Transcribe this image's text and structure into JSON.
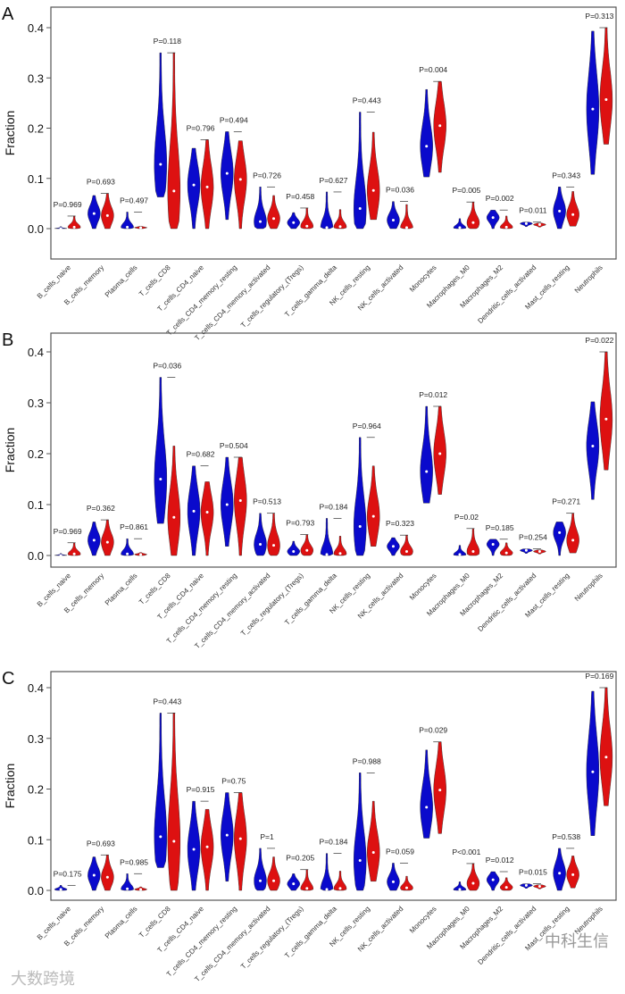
{
  "chart_data": [
    {
      "type": "violin",
      "panel_label": "A",
      "ylabel": "Fraction",
      "ylim": [
        0,
        0.4
      ],
      "yticks": [
        "0.0",
        "0.1",
        "0.2",
        "0.3",
        "0.4"
      ],
      "series_colors": {
        "group1": "#0a0acc",
        "group2": "#dd1111"
      },
      "categories": [
        "B_cells_naive",
        "B_cells_memory",
        "Plasma_cells",
        "T_cells_CD8",
        "T_cells_CD4_naive",
        "T_cells_CD4_memory_resting",
        "T_cells_CD4_memory_activated",
        "T_cells_regulatory_(Tregs)",
        "T_cells_gamma_delta",
        "NK_cells_resting",
        "NK_cells_activated",
        "Monocytes",
        "Macrophages_M0",
        "Macrophages_M2",
        "Dendritic_cells_activated",
        "Mast_cells_resting",
        "Neutrophils"
      ],
      "pvalues": [
        "P=0.969",
        "P=0.693",
        "P=0.497",
        "P=0.118",
        "P=0.796",
        "P=0.494",
        "P=0.726",
        "P=0.458",
        "P=0.627",
        "P=0.443",
        "P=0.036",
        "P=0.004",
        "P=0.005",
        "P=0.002",
        "P=0.011",
        "P=0.343",
        "P=0.313"
      ],
      "group1_min_max_median": [
        [
          0,
          0.004,
          0
        ],
        [
          0,
          0.066,
          0.03
        ],
        [
          0,
          0.033,
          0.003
        ],
        [
          0.063,
          0.35,
          0.128
        ],
        [
          0,
          0.16,
          0.087
        ],
        [
          0.018,
          0.193,
          0.11
        ],
        [
          0,
          0.083,
          0.014
        ],
        [
          0,
          0.032,
          0.012
        ],
        [
          0,
          0.073,
          0.002
        ],
        [
          0,
          0.232,
          0.04
        ],
        [
          0,
          0.054,
          0.017
        ],
        [
          0.103,
          0.277,
          0.164
        ],
        [
          0,
          0.02,
          0.002
        ],
        [
          0,
          0.037,
          0.022
        ],
        [
          0.004,
          0.013,
          0.01
        ],
        [
          0,
          0.083,
          0.035
        ],
        [
          0.108,
          0.393,
          0.238
        ]
      ],
      "group2_min_max_median": [
        [
          0,
          0.025,
          0.003
        ],
        [
          0,
          0.07,
          0.026
        ],
        [
          0,
          0.005,
          0.002
        ],
        [
          0,
          0.35,
          0.075
        ],
        [
          0,
          0.177,
          0.083
        ],
        [
          0,
          0.175,
          0.098
        ],
        [
          0,
          0.066,
          0.02
        ],
        [
          0,
          0.041,
          0.005
        ],
        [
          0,
          0.038,
          0.004
        ],
        [
          0.018,
          0.192,
          0.076
        ],
        [
          0,
          0.048,
          0.002
        ],
        [
          0.112,
          0.293,
          0.205
        ],
        [
          0,
          0.053,
          0.012
        ],
        [
          0,
          0.025,
          0.003
        ],
        [
          0.003,
          0.011,
          0.008
        ],
        [
          0.005,
          0.074,
          0.028
        ],
        [
          0.168,
          0.4,
          0.257
        ]
      ]
    },
    {
      "type": "violin",
      "panel_label": "B",
      "ylabel": "Fraction",
      "ylim": [
        0,
        0.4
      ],
      "yticks": [
        "0.0",
        "0.1",
        "0.2",
        "0.3",
        "0.4"
      ],
      "series_colors": {
        "group1": "#0a0acc",
        "group2": "#dd1111"
      },
      "categories": [
        "B_cells_naive",
        "B_cells_memory",
        "Plasma_cells",
        "T_cells_CD8",
        "T_cells_CD4_naive",
        "T_cells_CD4_memory_resting",
        "T_cells_CD4_memory_activated",
        "T_cells_regulatory_(Tregs)",
        "T_cells_gamma_delta",
        "NK_cells_resting",
        "NK_cells_activated",
        "Monocytes",
        "Macrophages_M0",
        "Macrophages_M2",
        "Dendritic_cells_activated",
        "Mast_cells_resting",
        "Neutrophils"
      ],
      "pvalues": [
        "P=0.969",
        "P=0.362",
        "P=0.861",
        "P=0.036",
        "P=0.682",
        "P=0.504",
        "P=0.513",
        "P=0.793",
        "P=0.184",
        "P=0.964",
        "P=0.323",
        "P=0.012",
        "P=0.02",
        "P=0.185",
        "P=0.254",
        "P=0.271",
        "P=0.022"
      ],
      "group1_min_max_median": [
        [
          0,
          0.004,
          0
        ],
        [
          0,
          0.066,
          0.03
        ],
        [
          0,
          0.033,
          0.003
        ],
        [
          0.063,
          0.35,
          0.15
        ],
        [
          0,
          0.176,
          0.087
        ],
        [
          0.018,
          0.193,
          0.1
        ],
        [
          0,
          0.083,
          0.022
        ],
        [
          0,
          0.028,
          0.008
        ],
        [
          0,
          0.073,
          0.002
        ],
        [
          0,
          0.232,
          0.057
        ],
        [
          0,
          0.035,
          0.018
        ],
        [
          0.103,
          0.293,
          0.165
        ],
        [
          0,
          0.02,
          0.002
        ],
        [
          0,
          0.032,
          0.022
        ],
        [
          0.004,
          0.013,
          0.01
        ],
        [
          0,
          0.066,
          0.045
        ],
        [
          0.11,
          0.302,
          0.215
        ]
      ],
      "group2_min_max_median": [
        [
          0,
          0.025,
          0.003
        ],
        [
          0,
          0.07,
          0.026
        ],
        [
          0,
          0.006,
          0.002
        ],
        [
          0,
          0.215,
          0.075
        ],
        [
          0,
          0.145,
          0.085
        ],
        [
          0,
          0.193,
          0.108
        ],
        [
          0,
          0.083,
          0.02
        ],
        [
          0,
          0.041,
          0.01
        ],
        [
          0,
          0.038,
          0.004
        ],
        [
          0.018,
          0.176,
          0.077
        ],
        [
          0,
          0.04,
          0.008
        ],
        [
          0.12,
          0.293,
          0.2
        ],
        [
          0,
          0.053,
          0.008
        ],
        [
          0,
          0.025,
          0.005
        ],
        [
          0.003,
          0.011,
          0.008
        ],
        [
          0.005,
          0.083,
          0.03
        ],
        [
          0.168,
          0.4,
          0.268
        ]
      ]
    },
    {
      "type": "violin",
      "panel_label": "C",
      "ylabel": "Fraction",
      "ylim": [
        0,
        0.4
      ],
      "yticks": [
        "0.0",
        "0.1",
        "0.2",
        "0.3",
        "0.4"
      ],
      "series_colors": {
        "group1": "#0a0acc",
        "group2": "#dd1111"
      },
      "categories": [
        "B_cells_naive",
        "B_cells_memory",
        "Plasma_cells",
        "T_cells_CD8",
        "T_cells_CD4_naive",
        "T_cells_CD4_memory_resting",
        "T_cells_CD4_memory_activated",
        "T_cells_regulatory_(Tregs)",
        "T_cells_gamma_delta",
        "NK_cells_resting",
        "NK_cells_activated",
        "Monocytes",
        "Macrophages_M0",
        "Macrophages_M2",
        "Dendritic_cells_activated",
        "Mast_cells_resting",
        "Neutrophils"
      ],
      "pvalues": [
        "P=0.175",
        "P=0.693",
        "P=0.985",
        "P=0.443",
        "P=0.915",
        "P=0.75",
        "P=1",
        "P=0.205",
        "P=0.184",
        "P=0.988",
        "P=0.059",
        "P=0.029",
        "P<0.001",
        "P=0.012",
        "P=0.015",
        "P=0.538",
        "P=0.169"
      ],
      "group1_min_max_median": [
        [
          0,
          0.01,
          0.002
        ],
        [
          0,
          0.066,
          0.03
        ],
        [
          0,
          0.033,
          0.003
        ],
        [
          0.045,
          0.35,
          0.106
        ],
        [
          0,
          0.176,
          0.081
        ],
        [
          0.018,
          0.193,
          0.109
        ],
        [
          0,
          0.083,
          0.019
        ],
        [
          0,
          0.033,
          0.013
        ],
        [
          0,
          0.073,
          0.002
        ],
        [
          0,
          0.232,
          0.059
        ],
        [
          0,
          0.054,
          0.017
        ],
        [
          0.103,
          0.277,
          0.164
        ],
        [
          0,
          0.017,
          0.002
        ],
        [
          0,
          0.037,
          0.021
        ],
        [
          0.004,
          0.013,
          0.01
        ],
        [
          0,
          0.083,
          0.034
        ],
        [
          0.108,
          0.393,
          0.234
        ]
      ],
      "group2_min_max_median": [
        [
          0,
          0.0,
          0.0
        ],
        [
          0,
          0.07,
          0.026
        ],
        [
          0,
          0.007,
          0.002
        ],
        [
          0,
          0.35,
          0.097
        ],
        [
          0,
          0.16,
          0.086
        ],
        [
          0,
          0.193,
          0.102
        ],
        [
          0,
          0.066,
          0.019
        ],
        [
          0,
          0.041,
          0.004
        ],
        [
          0,
          0.038,
          0.004
        ],
        [
          0.018,
          0.176,
          0.075
        ],
        [
          0,
          0.028,
          0.005
        ],
        [
          0.112,
          0.293,
          0.198
        ],
        [
          0,
          0.053,
          0.014
        ],
        [
          0,
          0.025,
          0.006
        ],
        [
          0.003,
          0.011,
          0.008
        ],
        [
          0.005,
          0.068,
          0.031
        ],
        [
          0.167,
          0.4,
          0.263
        ]
      ]
    }
  ],
  "watermarks": {
    "left": "大数跨境",
    "right": "中科生信"
  }
}
